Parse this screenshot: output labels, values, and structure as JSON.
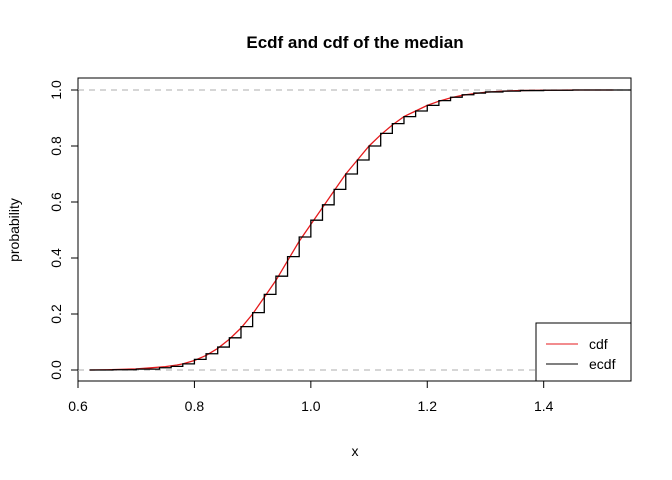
{
  "chart_data": {
    "type": "line",
    "title": "Ecdf and cdf of the median",
    "xlabel": "x",
    "ylabel": "probability",
    "xlim": [
      0.6,
      1.55
    ],
    "ylim": [
      0.0,
      1.0
    ],
    "x_ticks": [
      0.6,
      0.8,
      1.0,
      1.2,
      1.4
    ],
    "x_tick_labels": [
      "0.6",
      "0.8",
      "1.0",
      "1.2",
      "1.4"
    ],
    "y_ticks": [
      0.0,
      0.2,
      0.4,
      0.6,
      0.8,
      1.0
    ],
    "y_tick_labels": [
      "0.0",
      "0.2",
      "0.4",
      "0.6",
      "0.8",
      "1.0"
    ],
    "reference_lines": [
      0.0,
      1.0
    ],
    "legend_position": "bottom-right",
    "series": [
      {
        "name": "cdf",
        "color": "#e41a1c",
        "x": [
          0.62,
          0.65,
          0.7,
          0.72,
          0.75,
          0.77,
          0.78,
          0.8,
          0.82,
          0.84,
          0.86,
          0.88,
          0.9,
          0.92,
          0.94,
          0.96,
          0.98,
          1.0,
          1.02,
          1.04,
          1.06,
          1.08,
          1.1,
          1.12,
          1.14,
          1.16,
          1.18,
          1.2,
          1.22,
          1.24,
          1.26,
          1.28,
          1.3,
          1.33,
          1.36,
          1.4,
          1.45,
          1.52
        ],
        "y": [
          0.0,
          0.001,
          0.004,
          0.007,
          0.012,
          0.018,
          0.022,
          0.034,
          0.052,
          0.077,
          0.11,
          0.15,
          0.2,
          0.26,
          0.32,
          0.39,
          0.46,
          0.52,
          0.58,
          0.64,
          0.7,
          0.75,
          0.8,
          0.84,
          0.875,
          0.905,
          0.925,
          0.945,
          0.96,
          0.972,
          0.981,
          0.987,
          0.992,
          0.996,
          0.998,
          0.999,
          1.0,
          1.0
        ]
      },
      {
        "name": "ecdf",
        "color": "#000000",
        "x": [
          0.62,
          0.66,
          0.7,
          0.74,
          0.76,
          0.78,
          0.8,
          0.82,
          0.84,
          0.86,
          0.88,
          0.9,
          0.92,
          0.94,
          0.96,
          0.98,
          1.0,
          1.02,
          1.04,
          1.06,
          1.08,
          1.1,
          1.12,
          1.14,
          1.16,
          1.18,
          1.2,
          1.22,
          1.24,
          1.26,
          1.28,
          1.3,
          1.33,
          1.36,
          1.4,
          1.45,
          1.55
        ],
        "y": [
          0.0,
          0.001,
          0.003,
          0.008,
          0.013,
          0.022,
          0.038,
          0.058,
          0.082,
          0.115,
          0.155,
          0.205,
          0.27,
          0.335,
          0.405,
          0.475,
          0.535,
          0.59,
          0.645,
          0.7,
          0.75,
          0.8,
          0.845,
          0.88,
          0.905,
          0.925,
          0.945,
          0.962,
          0.974,
          0.983,
          0.989,
          0.993,
          0.996,
          0.998,
          0.999,
          1.0,
          1.0
        ]
      }
    ]
  }
}
